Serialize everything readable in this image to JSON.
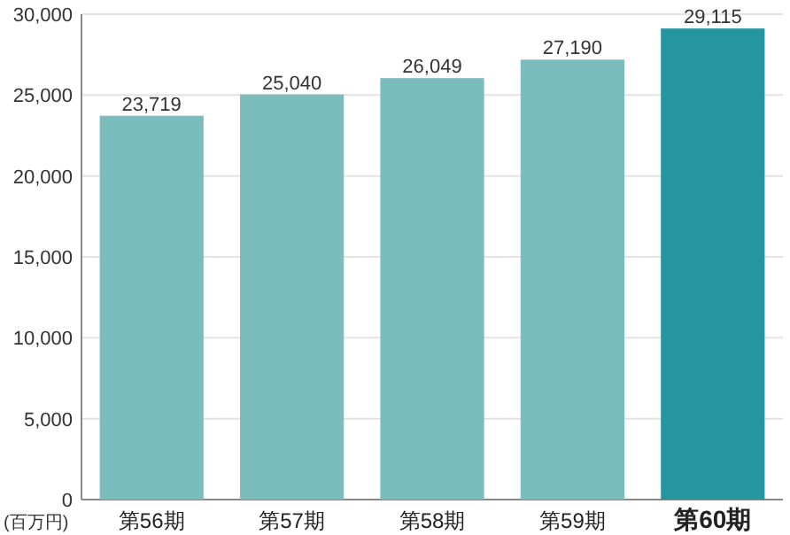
{
  "chart_data": {
    "type": "bar",
    "ylabel": "(百万円)",
    "categories": [
      "第56期",
      "第57期",
      "第58期",
      "第59期",
      "第60期"
    ],
    "values": [
      23719,
      25040,
      26049,
      27190,
      29115
    ],
    "colors": [
      "#7bbcbc",
      "#7bbcbc",
      "#7bbcbc",
      "#7bbcbc",
      "#2596a0"
    ],
    "value_labels": [
      "23,719",
      "25,040",
      "26,049",
      "27,190",
      "29,115"
    ],
    "ylim": [
      0,
      30000
    ],
    "yticks": [
      0,
      {
        "value": 5000,
        "label": "5,000"
      },
      {
        "value": 10000,
        "label": "10,000"
      },
      {
        "value": 15000,
        "label": "15,000"
      },
      {
        "value": 20000,
        "label": "20,000"
      },
      {
        "value": 25000,
        "label": "25,000"
      },
      {
        "value": 30000,
        "label": "30,000"
      }
    ],
    "grid": "y"
  }
}
